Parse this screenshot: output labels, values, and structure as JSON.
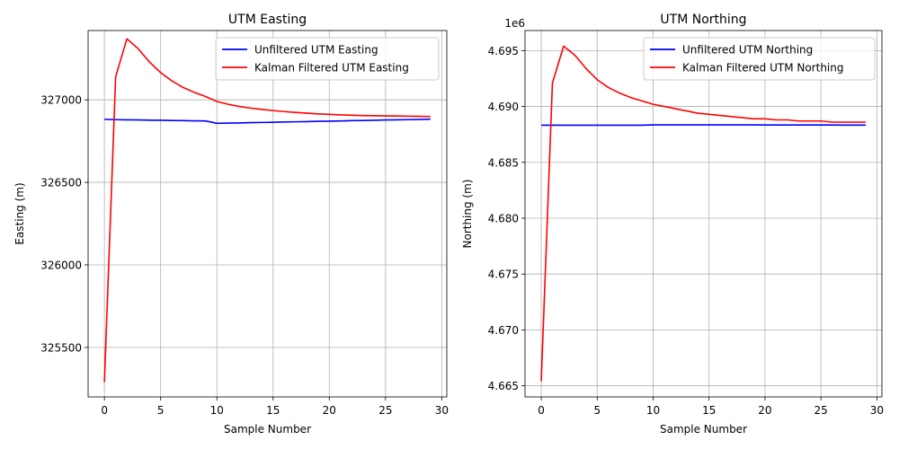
{
  "chart_data": [
    {
      "type": "line",
      "title": "UTM Easting",
      "xlabel": "Sample Number",
      "ylabel": "Easting (m)",
      "offset_text": "",
      "xlim": [
        -1.45,
        30.45
      ],
      "ylim": [
        325200,
        327420
      ],
      "xticks": [
        0,
        5,
        10,
        15,
        20,
        25,
        30
      ],
      "yticks": [
        325500,
        326000,
        326500,
        327000
      ],
      "ytick_labels": [
        "325500",
        "326000",
        "326500",
        "327000"
      ],
      "grid": true,
      "legend_position": "upper right",
      "series": [
        {
          "name": "Unfiltered UTM Easting",
          "color": "#0000ff",
          "x": [
            0,
            1,
            2,
            3,
            4,
            5,
            6,
            7,
            8,
            9,
            10,
            11,
            12,
            13,
            14,
            15,
            16,
            17,
            18,
            19,
            20,
            21,
            22,
            23,
            24,
            25,
            26,
            27,
            28,
            29
          ],
          "y": [
            326882,
            326880,
            326879,
            326878,
            326877,
            326876,
            326875,
            326874,
            326873,
            326872,
            326858,
            326859,
            326860,
            326862,
            326863,
            326864,
            326866,
            326867,
            326868,
            326870,
            326871,
            326872,
            326874,
            326875,
            326876,
            326878,
            326879,
            326880,
            326881,
            326883
          ]
        },
        {
          "name": "Kalman Filtered UTM Easting",
          "color": "#ff0000",
          "x": [
            0,
            1,
            2,
            3,
            4,
            5,
            6,
            7,
            8,
            9,
            10,
            11,
            12,
            13,
            14,
            15,
            16,
            17,
            18,
            19,
            20,
            21,
            22,
            23,
            24,
            25,
            26,
            27,
            28,
            29
          ],
          "y": [
            325290,
            327140,
            327370,
            327310,
            327230,
            327165,
            327115,
            327075,
            327045,
            327020,
            326990,
            326973,
            326960,
            326950,
            326942,
            326935,
            326929,
            326924,
            326919,
            326915,
            326912,
            326909,
            326907,
            326905,
            326904,
            326903,
            326902,
            326901,
            326900,
            326899
          ]
        }
      ]
    },
    {
      "type": "line",
      "title": "UTM Northing",
      "xlabel": "Sample Number",
      "ylabel": "Northing (m)",
      "offset_text": "1e6",
      "xlim": [
        -1.45,
        30.45
      ],
      "ylim": [
        4.664,
        4.6968
      ],
      "xticks": [
        0,
        5,
        10,
        15,
        20,
        25,
        30
      ],
      "yticks": [
        4.665,
        4.67,
        4.675,
        4.68,
        4.685,
        4.69,
        4.695
      ],
      "ytick_labels": [
        "4.665",
        "4.670",
        "4.675",
        "4.680",
        "4.685",
        "4.690",
        "4.695"
      ],
      "grid": true,
      "legend_position": "upper right",
      "series": [
        {
          "name": "Unfiltered UTM Northing",
          "color": "#0000ff",
          "x": [
            0,
            1,
            2,
            3,
            4,
            5,
            6,
            7,
            8,
            9,
            10,
            11,
            12,
            13,
            14,
            15,
            16,
            17,
            18,
            19,
            20,
            21,
            22,
            23,
            24,
            25,
            26,
            27,
            28,
            29
          ],
          "y": [
            4.68832,
            4.68832,
            4.68832,
            4.68832,
            4.68832,
            4.68832,
            4.68832,
            4.68832,
            4.68832,
            4.68832,
            4.68835,
            4.68835,
            4.68835,
            4.68835,
            4.68835,
            4.68835,
            4.68835,
            4.68835,
            4.68835,
            4.68835,
            4.68834,
            4.68834,
            4.68834,
            4.68834,
            4.68834,
            4.68834,
            4.68834,
            4.68833,
            4.68833,
            4.68833
          ]
        },
        {
          "name": "Kalman Filtered UTM Northing",
          "color": "#ff0000",
          "x": [
            0,
            1,
            2,
            3,
            4,
            5,
            6,
            7,
            8,
            9,
            10,
            11,
            12,
            13,
            14,
            15,
            16,
            17,
            18,
            19,
            20,
            21,
            22,
            23,
            24,
            25,
            26,
            27,
            28,
            29
          ],
          "y": [
            4.6654,
            4.6921,
            4.6954,
            4.6946,
            4.6934,
            4.6924,
            4.6917,
            4.6912,
            4.6908,
            4.6905,
            4.6902,
            4.69,
            4.6898,
            4.6896,
            4.6894,
            4.6893,
            4.6892,
            4.6891,
            4.689,
            4.6889,
            4.6889,
            4.6888,
            4.6888,
            4.6887,
            4.6887,
            4.6887,
            4.6886,
            4.6886,
            4.6886,
            4.6886
          ]
        }
      ]
    }
  ]
}
